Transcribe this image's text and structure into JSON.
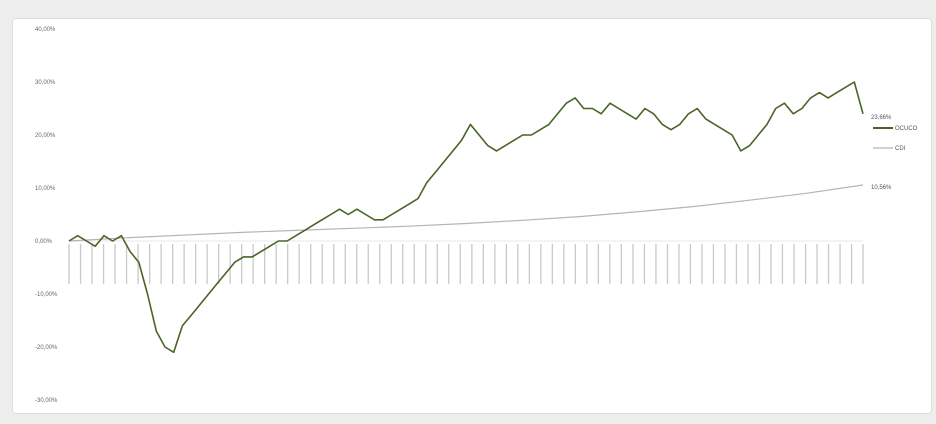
{
  "chart_data": {
    "type": "line",
    "title": "",
    "xlabel": "",
    "ylabel": "",
    "ylim": [
      -30,
      40
    ],
    "yticks": [
      40,
      30,
      20,
      10,
      0,
      -10,
      -20,
      -30
    ],
    "ytick_labels": [
      "40,00%",
      "30,00%",
      "20,00%",
      "10,00%",
      "0,00%",
      "-10,00%",
      "-20,00%",
      "-30,00%"
    ],
    "x_tick_count": 70,
    "grid": false,
    "legend_position": "right",
    "end_labels": [
      "23,66%",
      "10,56%"
    ],
    "series": [
      {
        "name": "OCUCO",
        "color": "#4a6427",
        "values": [
          0,
          1,
          0,
          -1,
          1,
          0,
          1,
          -2,
          -4,
          -10,
          -17,
          -20,
          -21,
          -16,
          -14,
          -12,
          -10,
          -8,
          -6,
          -4,
          -3,
          -3,
          -2,
          -1,
          0,
          0,
          1,
          2,
          3,
          4,
          5,
          6,
          5,
          6,
          5,
          4,
          4,
          5,
          6,
          7,
          8,
          11,
          13,
          15,
          17,
          19,
          22,
          20,
          18,
          17,
          18,
          19,
          20,
          20,
          21,
          22,
          24,
          26,
          27,
          25,
          25,
          24,
          26,
          25,
          24,
          23,
          25,
          24,
          22,
          21,
          22,
          24,
          25,
          23,
          22,
          21,
          20,
          17,
          18,
          20,
          22,
          25,
          26,
          24,
          25,
          27,
          28,
          27,
          28,
          29,
          30,
          24
        ]
      },
      {
        "name": "CDI",
        "color": "#b4b4b4",
        "values": [
          0,
          0.6,
          1.1,
          1.6,
          2.0,
          2.4,
          2.8,
          3.3,
          3.9,
          4.6,
          5.5,
          6.5,
          7.7,
          9.0,
          10.56
        ]
      }
    ]
  }
}
